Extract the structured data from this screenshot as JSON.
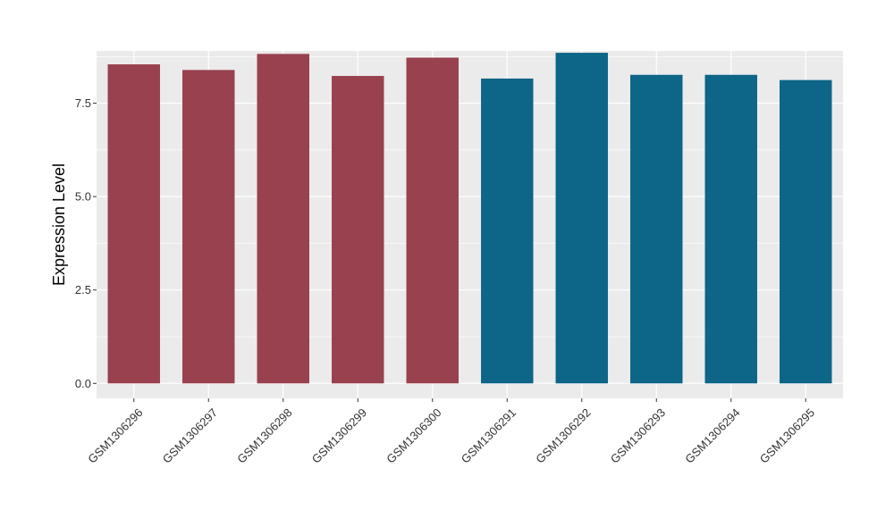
{
  "chart_data": {
    "type": "bar",
    "title": "",
    "xlabel": "",
    "ylabel": "Expression Level",
    "ylim": [
      -0.4,
      8.9
    ],
    "yticks": [
      0.0,
      2.5,
      5.0,
      7.5
    ],
    "ytick_labels": [
      "0.0",
      "2.5",
      "5.0",
      "7.5"
    ],
    "grid": true,
    "legend": "none",
    "colors": {
      "group_a": "#99414E",
      "group_b": "#0D6587",
      "panel": "#EBEBEB",
      "grid": "#FFFFFF"
    },
    "categories": [
      "GSM1306296",
      "GSM1306297",
      "GSM1306298",
      "GSM1306299",
      "GSM1306300",
      "GSM1306291",
      "GSM1306292",
      "GSM1306293",
      "GSM1306294",
      "GSM1306295"
    ],
    "values": [
      8.54,
      8.39,
      8.82,
      8.23,
      8.72,
      8.16,
      8.85,
      8.26,
      8.26,
      8.12
    ],
    "bar_groups": [
      "a",
      "a",
      "a",
      "a",
      "a",
      "b",
      "b",
      "b",
      "b",
      "b"
    ]
  }
}
